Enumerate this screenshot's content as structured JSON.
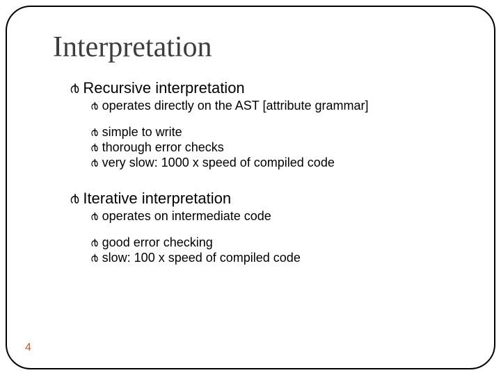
{
  "title": "Interpretation",
  "page_number": "4",
  "colors": {
    "title_color": "#3e3e3e",
    "body_text_color": "#000000",
    "page_number_color": "#c55a2b",
    "frame_border_color": "#000000",
    "background_color": "#ffffff"
  },
  "typography": {
    "title_font": "Georgia, serif",
    "title_fontsize": 42,
    "body_font": "Arial, sans-serif",
    "level1_fontsize": 22,
    "level2_fontsize": 18,
    "bullet_glyph": "൪"
  },
  "layout": {
    "frame_border_radius": 36,
    "frame_border_width": 2
  },
  "sections": {
    "recursive": {
      "heading": "Recursive interpretation",
      "sub1": "operates directly on the AST [attribute grammar]",
      "sub2": "simple to write",
      "sub3": "thorough error checks",
      "sub4": "very slow: 1000 x speed of compiled code"
    },
    "iterative": {
      "heading": "Iterative interpretation",
      "sub1": "operates on intermediate code",
      "sub2": "good error checking",
      "sub3": "slow: 100 x speed of compiled code"
    }
  }
}
